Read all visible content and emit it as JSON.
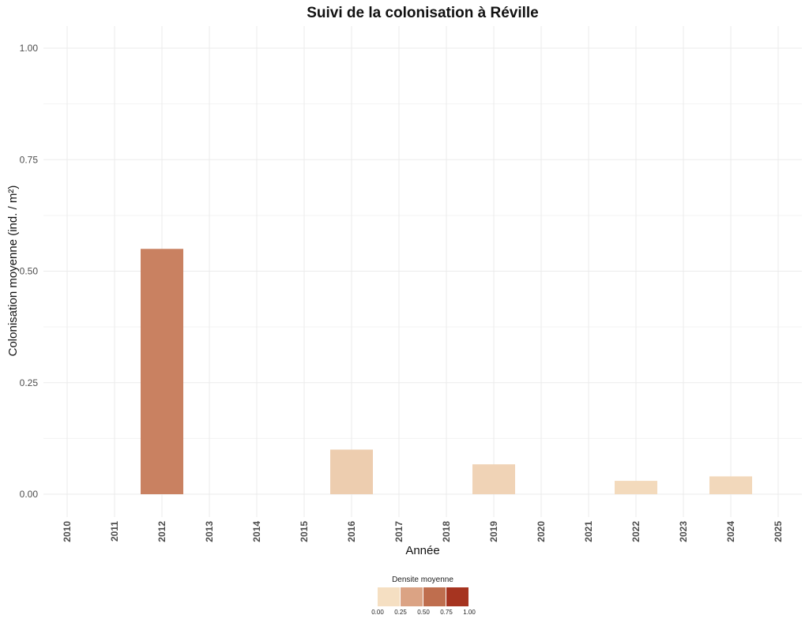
{
  "chart_data": {
    "type": "bar",
    "title": "Suivi de la colonisation à Réville",
    "xlabel": "Année",
    "ylabel": "Colonisation moyenne (ind. / m²)",
    "categories": [
      "2010",
      "2011",
      "2012",
      "2013",
      "2014",
      "2015",
      "2016",
      "2017",
      "2018",
      "2019",
      "2020",
      "2021",
      "2022",
      "2023",
      "2024",
      "2025"
    ],
    "values": [
      0,
      0,
      0.55,
      0,
      0,
      0,
      0.1,
      0,
      0,
      0.067,
      0,
      0,
      0.03,
      0,
      0.04,
      0
    ],
    "fill_values": [
      0,
      0,
      0.55,
      0,
      0,
      0,
      0.1,
      0,
      0,
      0.067,
      0,
      0,
      0.03,
      0,
      0.04,
      0
    ],
    "ylim": [
      0,
      1
    ],
    "yticks": [
      0,
      0.25,
      0.5,
      0.75,
      1.0
    ],
    "ytick_labels": [
      "0.00",
      "0.25",
      "0.50",
      "0.75",
      "1.00"
    ],
    "grid": true,
    "legend": {
      "title": "Densite moyenne",
      "placement": "bottom",
      "ticks": [
        "0.00",
        "0.25",
        "0.50",
        "0.75",
        "1.00"
      ],
      "colors": [
        "#f5dfc2",
        "#dba384",
        "#bf6e4e",
        "#a63420"
      ],
      "range": [
        0,
        1
      ]
    }
  }
}
